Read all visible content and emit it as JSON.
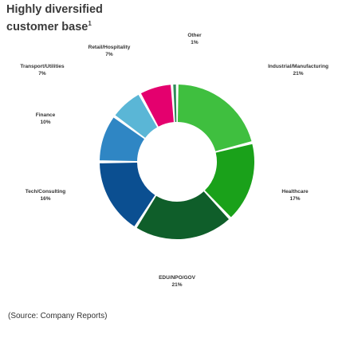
{
  "title": {
    "line1": "Highly diversified",
    "line2": "customer base",
    "superscript": "1"
  },
  "source": "(Source: Company Reports)",
  "chart_data": {
    "type": "pie",
    "subtype": "donut",
    "title": "Highly diversified customer base",
    "unit": "%",
    "slices": [
      {
        "label": "Industrial/Manufacturing",
        "value_label": "21%",
        "value": 21,
        "color": "#3fbf3f"
      },
      {
        "label": "Healthcare",
        "value_label": "17%",
        "value": 17,
        "color": "#1aa11a"
      },
      {
        "label": "EDU/NPO/GOV",
        "value_label": "21%",
        "value": 21,
        "color": "#0f5e2a"
      },
      {
        "label": "Tech/Consulting",
        "value_label": "16%",
        "value": 16,
        "color": "#0b4f91"
      },
      {
        "label": "Finance",
        "value_label": "10%",
        "value": 10,
        "color": "#2f86c4"
      },
      {
        "label": "Transport/Utilities",
        "value_label": "7%",
        "value": 7,
        "color": "#5ab6d6"
      },
      {
        "label": "Retail/Hospitality",
        "value_label": "7%",
        "value": 7,
        "color": "#e4006e"
      },
      {
        "label": "Other",
        "value_label": "1%",
        "value": 1,
        "color": "#2e8b57"
      }
    ]
  }
}
